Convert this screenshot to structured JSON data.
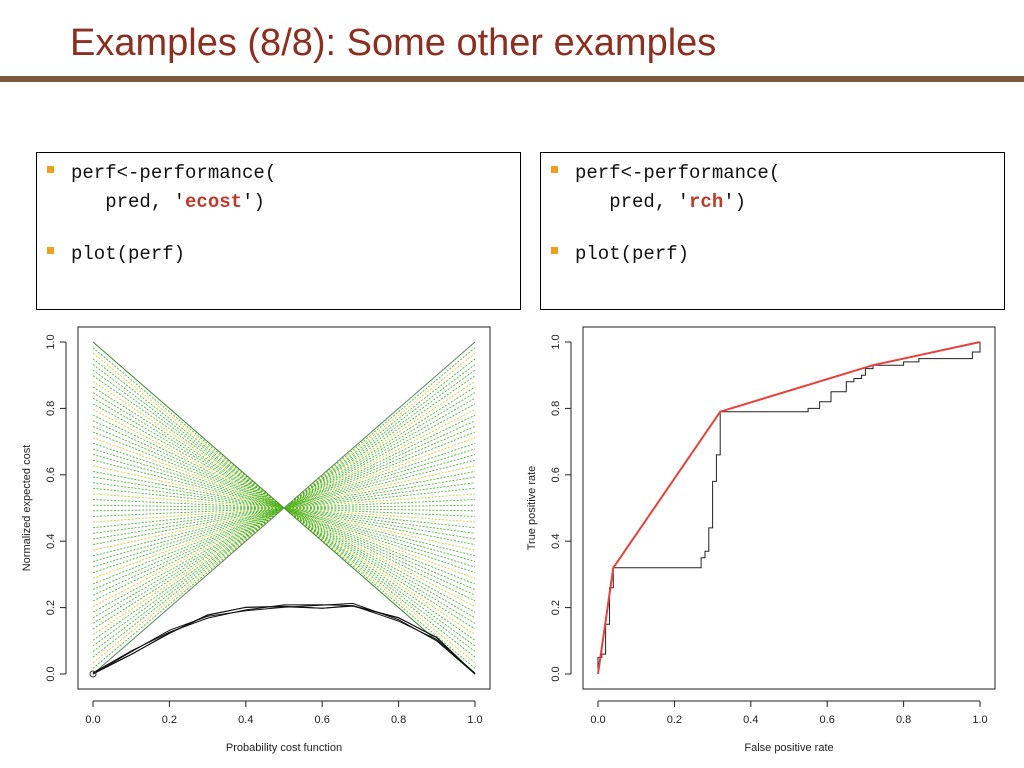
{
  "slide": {
    "title": "Examples (8/8): Some other examples"
  },
  "left_box": {
    "line1": "perf<-performance(",
    "line2_prefix": "   pred, '",
    "line2_keyword": "ecost",
    "line2_suffix": "')",
    "line3": "plot(perf)"
  },
  "right_box": {
    "line1": "perf<-performance(",
    "line2_prefix": "   pred, '",
    "line2_keyword": "rch",
    "line2_suffix": "')",
    "line3": "plot(perf)"
  },
  "colors": {
    "title": "#8b2f20",
    "rule": "#7a5a3c",
    "bullet": "#f0a020",
    "keyword": "#c0392b",
    "cost_lines_green": "#3cb020",
    "cost_lines_yellow": "#c8c820",
    "envelope": "#111111",
    "roc_curve": "#222222",
    "hull": "#e8413a"
  },
  "chart_data": [
    {
      "type": "line",
      "xlabel": "Probability cost function",
      "ylabel": "Normalized expected cost",
      "xlim": [
        0,
        1
      ],
      "ylim": [
        0,
        1
      ],
      "xticks": [
        "0.0",
        "0.2",
        "0.4",
        "0.6",
        "0.8",
        "1.0"
      ],
      "yticks": [
        "0.0",
        "0.2",
        "0.4",
        "0.6",
        "0.8",
        "1.0"
      ],
      "cost_lines": {
        "count": 60,
        "from_x0_y_range": [
          0.0,
          1.0
        ],
        "to_x1_y_range": [
          0.0,
          1.0
        ]
      },
      "lower_envelope": {
        "x": [
          0.0,
          0.1,
          0.2,
          0.3,
          0.4,
          0.5,
          0.6,
          0.68,
          0.8,
          0.9,
          1.0
        ],
        "y": [
          0.0,
          0.07,
          0.13,
          0.17,
          0.19,
          0.205,
          0.21,
          0.21,
          0.16,
          0.1,
          0.0
        ]
      }
    },
    {
      "type": "line",
      "xlabel": "False positive rate",
      "ylabel": "True positive rate",
      "xlim": [
        0,
        1
      ],
      "ylim": [
        0,
        1
      ],
      "xticks": [
        "0.0",
        "0.2",
        "0.4",
        "0.6",
        "0.8",
        "1.0"
      ],
      "yticks": [
        "0.0",
        "0.2",
        "0.4",
        "0.6",
        "0.8",
        "1.0"
      ],
      "series": [
        {
          "x": [
            0,
            0,
            0.01,
            0.01,
            0.02,
            0.02,
            0.03,
            0.03,
            0.04,
            0.04,
            0.27,
            0.27,
            0.28,
            0.28,
            0.29,
            0.29,
            0.3,
            0.3,
            0.31,
            0.31,
            0.32,
            0.32,
            0.55,
            0.55,
            0.58,
            0.58,
            0.61,
            0.61,
            0.65,
            0.65,
            0.67,
            0.67,
            0.69,
            0.69,
            0.7,
            0.7,
            0.72,
            0.72,
            0.8,
            0.8,
            0.84,
            0.84,
            0.98,
            0.98,
            1.0,
            1.0
          ],
          "y": [
            0,
            0.05,
            0.05,
            0.06,
            0.06,
            0.15,
            0.15,
            0.26,
            0.26,
            0.32,
            0.32,
            0.35,
            0.35,
            0.37,
            0.37,
            0.44,
            0.44,
            0.58,
            0.58,
            0.66,
            0.66,
            0.79,
            0.79,
            0.8,
            0.8,
            0.82,
            0.82,
            0.85,
            0.85,
            0.88,
            0.88,
            0.89,
            0.89,
            0.9,
            0.9,
            0.92,
            0.92,
            0.93,
            0.93,
            0.94,
            0.94,
            0.95,
            0.95,
            0.97,
            0.97,
            1.0
          ]
        },
        {
          "x": [
            0,
            0.04,
            0.32,
            0.72,
            1.0
          ],
          "y": [
            0,
            0.32,
            0.79,
            0.93,
            1.0
          ]
        }
      ]
    }
  ]
}
